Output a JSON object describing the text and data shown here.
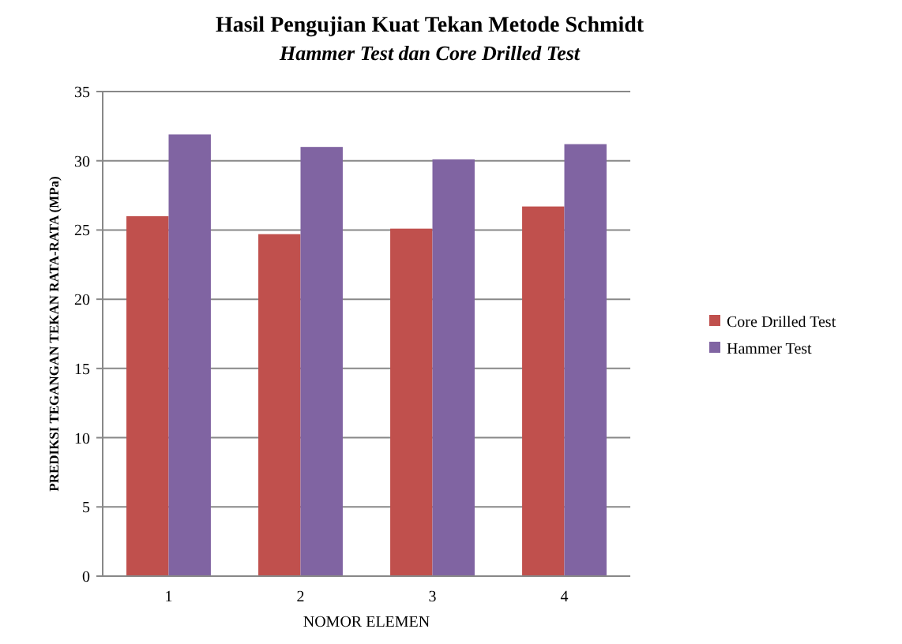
{
  "chart_data": {
    "type": "bar",
    "title": "Hasil Pengujian Kuat Tekan Metode Schmidt",
    "subtitle": "Hammer Test dan Core Drilled Test",
    "xlabel": "NOMOR ELEMEN",
    "ylabel": "PREDIKSI TEGANGAN TEKAN RATA-RATA (MPa)",
    "categories": [
      "1",
      "2",
      "3",
      "4"
    ],
    "series": [
      {
        "name": "Core Drilled Test",
        "color": "#c0504d",
        "values": [
          26.0,
          24.7,
          25.1,
          26.7
        ]
      },
      {
        "name": "Hammer Test",
        "color": "#8064a2",
        "values": [
          31.9,
          31.0,
          30.1,
          31.2
        ]
      }
    ],
    "ylim": [
      0,
      35
    ],
    "yticks": [
      0,
      5,
      10,
      15,
      20,
      25,
      30,
      35
    ],
    "grid": "y",
    "legend": "right"
  }
}
